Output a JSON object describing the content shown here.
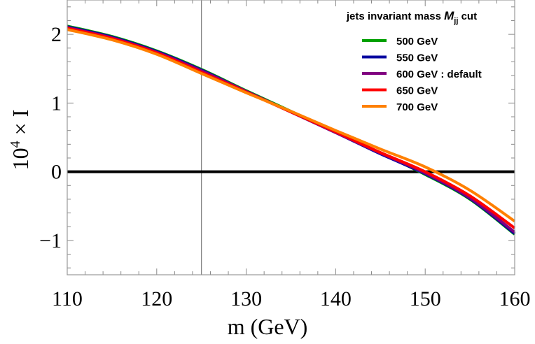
{
  "chart_data": {
    "type": "line",
    "xlabel": "m (GeV)",
    "ylabel_base": "10",
    "ylabel_exp": "4",
    "ylabel_rest": " × I",
    "xlim": [
      110,
      160
    ],
    "ylim": [
      -1.5,
      2.5
    ],
    "x_ticks": [
      110,
      120,
      130,
      140,
      150,
      160
    ],
    "y_ticks": [
      -1,
      0,
      1,
      2
    ],
    "y_tick_labels": [
      "−1",
      "0",
      "1",
      "2"
    ],
    "x_tick_labels": [
      "110",
      "120",
      "130",
      "140",
      "150",
      "160"
    ],
    "grid": false,
    "reference_lines": {
      "vertical_x": 125,
      "horizontal_y": 0
    },
    "legend": {
      "placement": "top-right",
      "title_prefix": "jets invariant mass ",
      "title_symbol": "M",
      "title_subscript": "jj",
      "title_suffix": " cut"
    },
    "x": [
      110,
      115,
      120,
      125,
      130,
      135,
      140,
      145,
      150,
      155,
      160
    ],
    "series": [
      {
        "name": "500 GeV",
        "color": "#00a000",
        "values": [
          2.12,
          1.97,
          1.76,
          1.49,
          1.18,
          0.88,
          0.58,
          0.27,
          -0.04,
          -0.4,
          -0.91
        ]
      },
      {
        "name": "550 GeV",
        "color": "#0000a0",
        "values": [
          2.11,
          1.96,
          1.75,
          1.48,
          1.17,
          0.87,
          0.57,
          0.26,
          -0.03,
          -0.39,
          -0.9
        ]
      },
      {
        "name": "600 GeV : default",
        "color": "#800080",
        "values": [
          2.1,
          1.95,
          1.74,
          1.47,
          1.17,
          0.87,
          0.57,
          0.27,
          -0.02,
          -0.38,
          -0.88
        ]
      },
      {
        "name": "650 GeV",
        "color": "#ff0000",
        "values": [
          2.09,
          1.94,
          1.73,
          1.45,
          1.16,
          0.87,
          0.58,
          0.28,
          0.0,
          -0.35,
          -0.82
        ]
      },
      {
        "name": "700 GeV",
        "color": "#ff8000",
        "values": [
          2.07,
          1.92,
          1.71,
          1.43,
          1.15,
          0.88,
          0.6,
          0.33,
          0.07,
          -0.27,
          -0.72
        ]
      }
    ]
  }
}
